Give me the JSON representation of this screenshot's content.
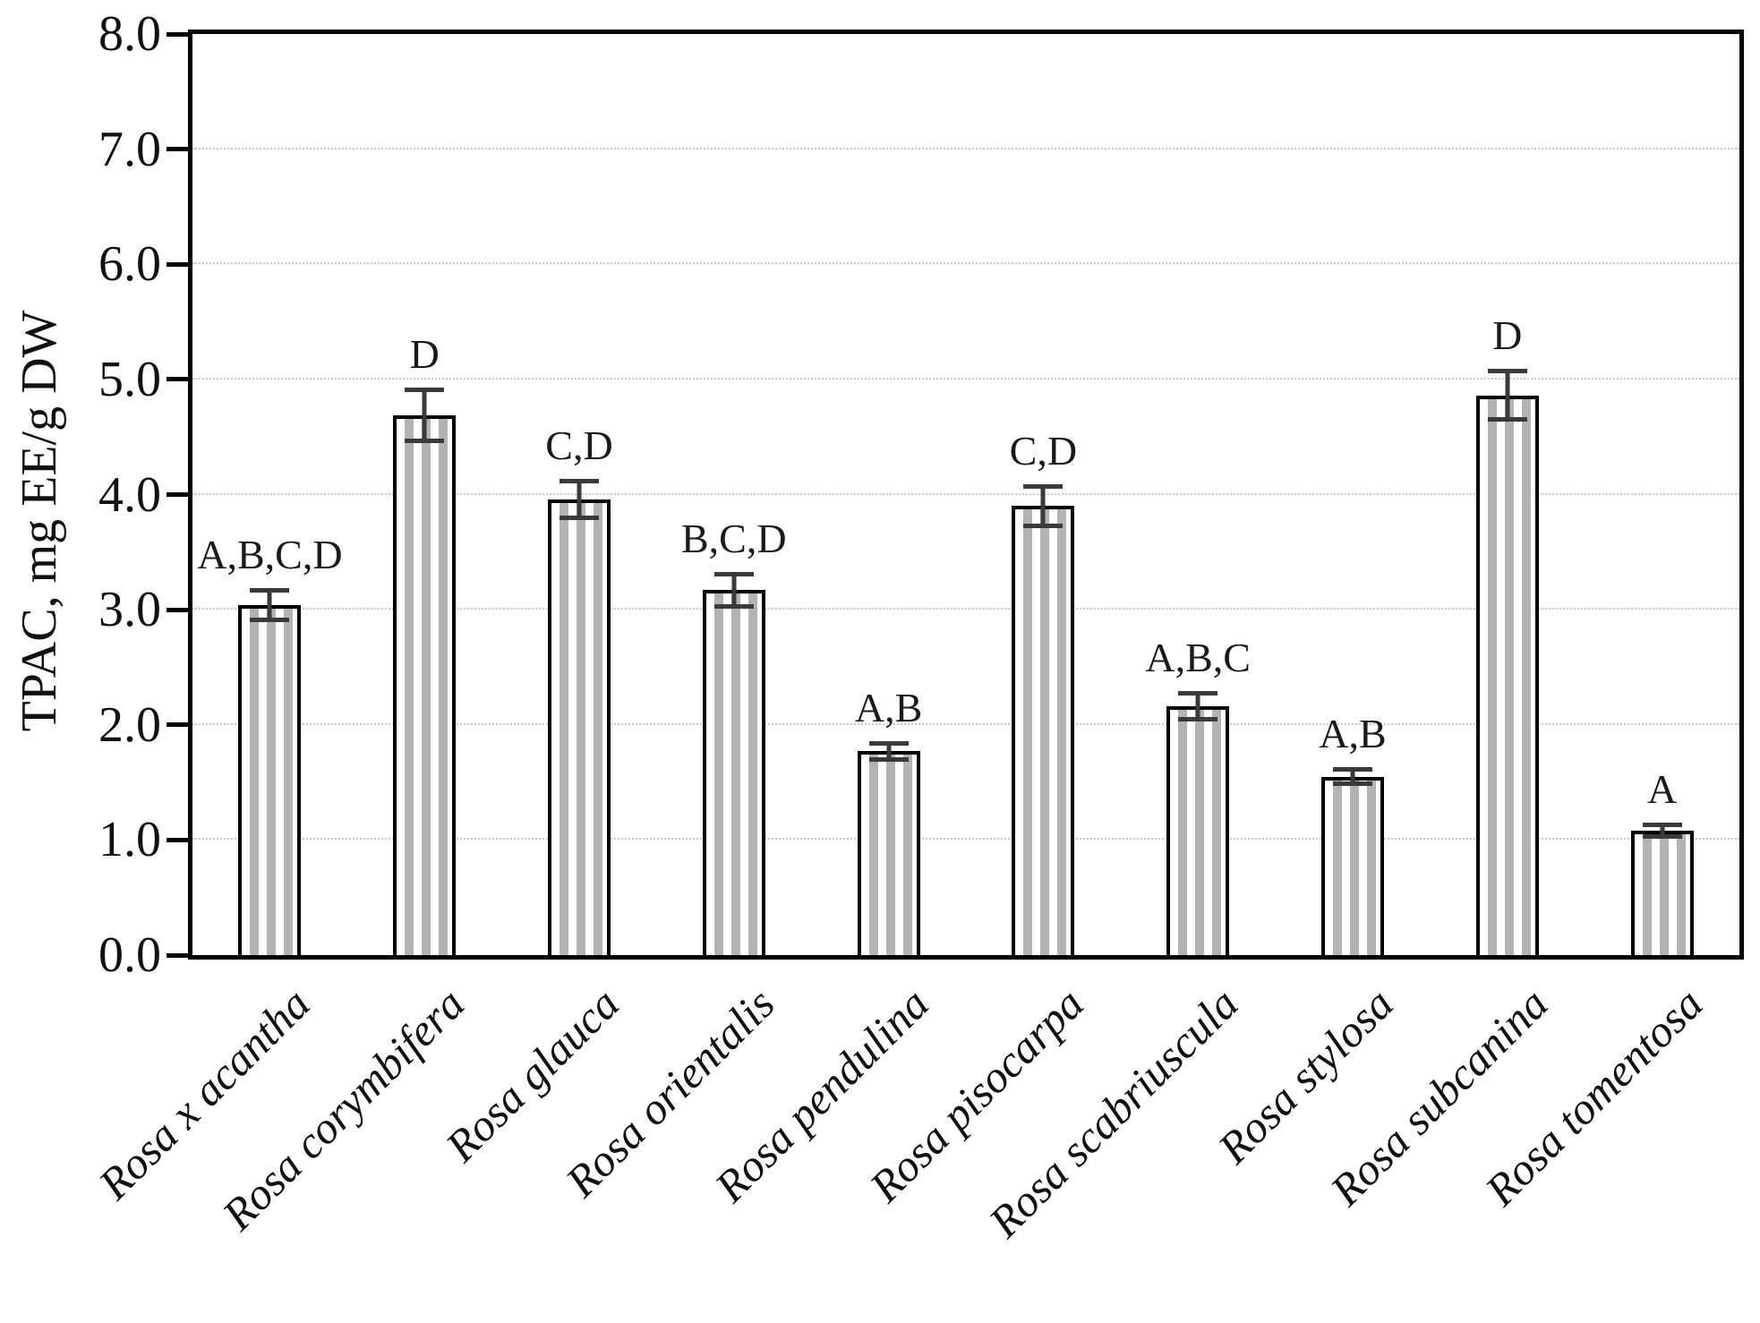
{
  "chart_data": {
    "type": "bar",
    "title": "",
    "xlabel": "",
    "ylabel": "TPAC, mg EE/g DW",
    "ylim": [
      0.0,
      8.0
    ],
    "ytick_labels": [
      "0.0",
      "1.0",
      "2.0",
      "3.0",
      "4.0",
      "5.0",
      "6.0",
      "7.0",
      "8.0"
    ],
    "grid": "horizontal dotted gridlines at each 1.0, plot framed by solid black border",
    "legend": "none",
    "categories": [
      "Rosa x acantha",
      "Rosa corymbifera",
      "Rosa glauca",
      "Rosa orientalis",
      "Rosa pendulina",
      "Rosa pisocarpa",
      "Rosa scabriuscula",
      "Rosa stylosa",
      "Rosa subcanina",
      "Rosa tomentosa"
    ],
    "values": [
      3.04,
      4.69,
      3.96,
      3.17,
      1.77,
      3.9,
      2.16,
      1.55,
      4.86,
      1.08
    ],
    "errors": [
      0.15,
      0.24,
      0.18,
      0.16,
      0.09,
      0.19,
      0.13,
      0.08,
      0.23,
      0.07
    ],
    "significance_labels": [
      "A,B,C,D",
      "D",
      "C,D",
      "B,C,D",
      "A,B",
      "C,D",
      "A,B,C",
      "A,B",
      "D",
      "A"
    ],
    "bar_fill": "white with vertical gray stripes",
    "colors": {
      "bar_stripe": "#b5b2b2",
      "bar_border": "#000000",
      "error_bar": "#3a3a3a",
      "gridline": "#c9c9c9",
      "text": "#111111"
    }
  }
}
